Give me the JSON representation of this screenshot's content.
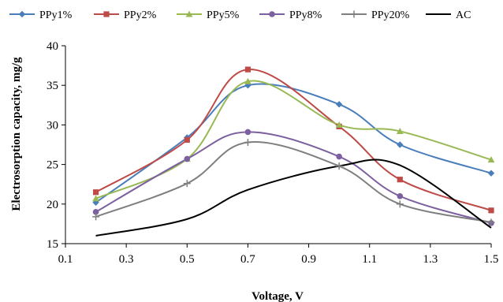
{
  "chart_data": {
    "type": "line",
    "xlabel": "Voltage, V",
    "ylabel": "Electrosorption capacity, mg/g",
    "xlim": [
      0.1,
      1.5
    ],
    "ylim": [
      15,
      40
    ],
    "x_ticks": [
      "0.1",
      "0.3",
      "0.5",
      "0.7",
      "0.9",
      "1.1",
      "1.3",
      "1.5"
    ],
    "y_ticks": [
      "15",
      "20",
      "25",
      "30",
      "35",
      "40"
    ],
    "grid": "none",
    "legend_position": "top",
    "smooth": true,
    "x": [
      0.2,
      0.5,
      0.7,
      1.0,
      1.2,
      1.5
    ],
    "series": [
      {
        "name": "PPy1%",
        "color": "#4a7ebb",
        "marker": "diamond",
        "values": [
          20.2,
          28.4,
          35.0,
          32.6,
          27.5,
          23.9
        ]
      },
      {
        "name": "PPy2%",
        "color": "#be4b48",
        "marker": "square",
        "values": [
          21.5,
          28.1,
          37.0,
          29.8,
          23.1,
          19.2
        ]
      },
      {
        "name": "PPy5%",
        "color": "#98b954",
        "marker": "triangle",
        "values": [
          20.7,
          25.7,
          35.5,
          30.0,
          29.2,
          25.6
        ]
      },
      {
        "name": "PPy8%",
        "color": "#7d60a0",
        "marker": "circle",
        "values": [
          19.0,
          25.7,
          29.1,
          26.0,
          21.0,
          17.6
        ]
      },
      {
        "name": "PPy20%",
        "color": "#7f7f7f",
        "marker": "plus",
        "values": [
          18.4,
          22.6,
          27.8,
          24.8,
          20.0,
          17.7
        ]
      },
      {
        "name": "AC",
        "color": "#000000",
        "marker": "none",
        "values": [
          16.0,
          18.1,
          21.8,
          24.8,
          24.9,
          17.0
        ]
      }
    ]
  }
}
